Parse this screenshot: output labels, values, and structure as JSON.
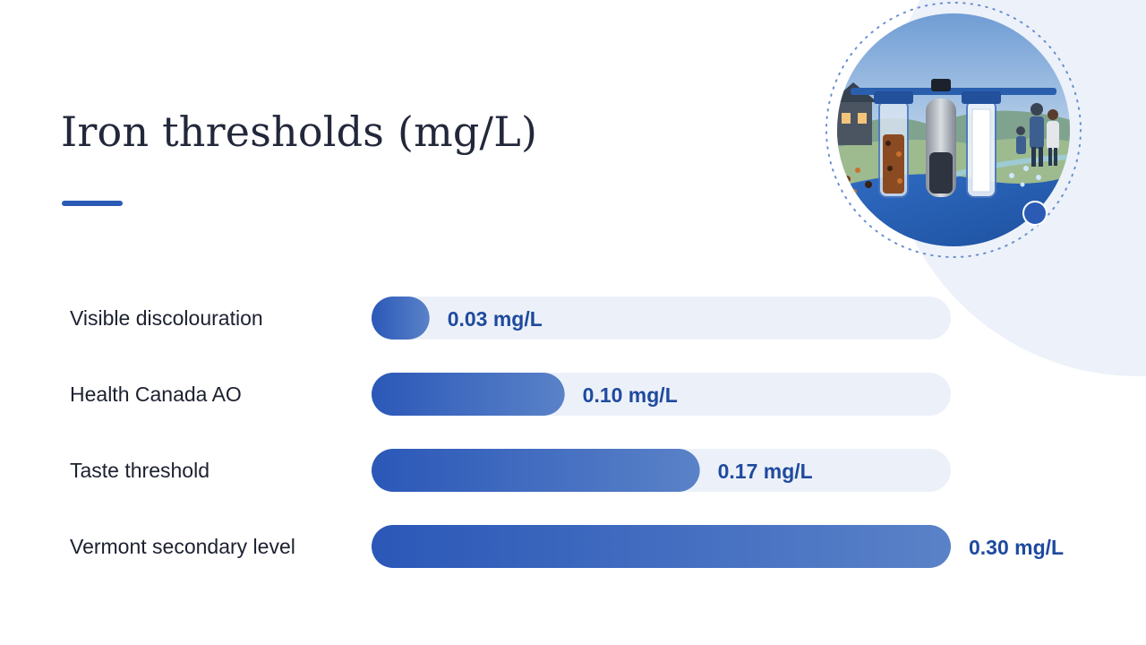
{
  "title": "Iron thresholds (mg/L)",
  "colors": {
    "accent": "#2c5bb5",
    "track": "#ecf1f9",
    "bar_start": "#2b58b8",
    "bar_end": "#5a82c8",
    "value_text": "#1f4a9e",
    "label_text": "#1c2130",
    "background_shape": "#edf1f9"
  },
  "chart_data": {
    "type": "bar",
    "orientation": "horizontal",
    "categories": [
      "Visible discolouration",
      "Health Canada AO",
      "Taste threshold",
      "Vermont secondary level"
    ],
    "values": [
      0.03,
      0.1,
      0.17,
      0.3
    ],
    "value_labels": [
      "0.03 mg/L",
      "0.10 mg/L",
      "0.17 mg/L",
      "0.30 mg/L"
    ],
    "unit": "mg/L",
    "xlim": [
      0,
      0.3
    ],
    "grid": false,
    "legend": "none"
  }
}
